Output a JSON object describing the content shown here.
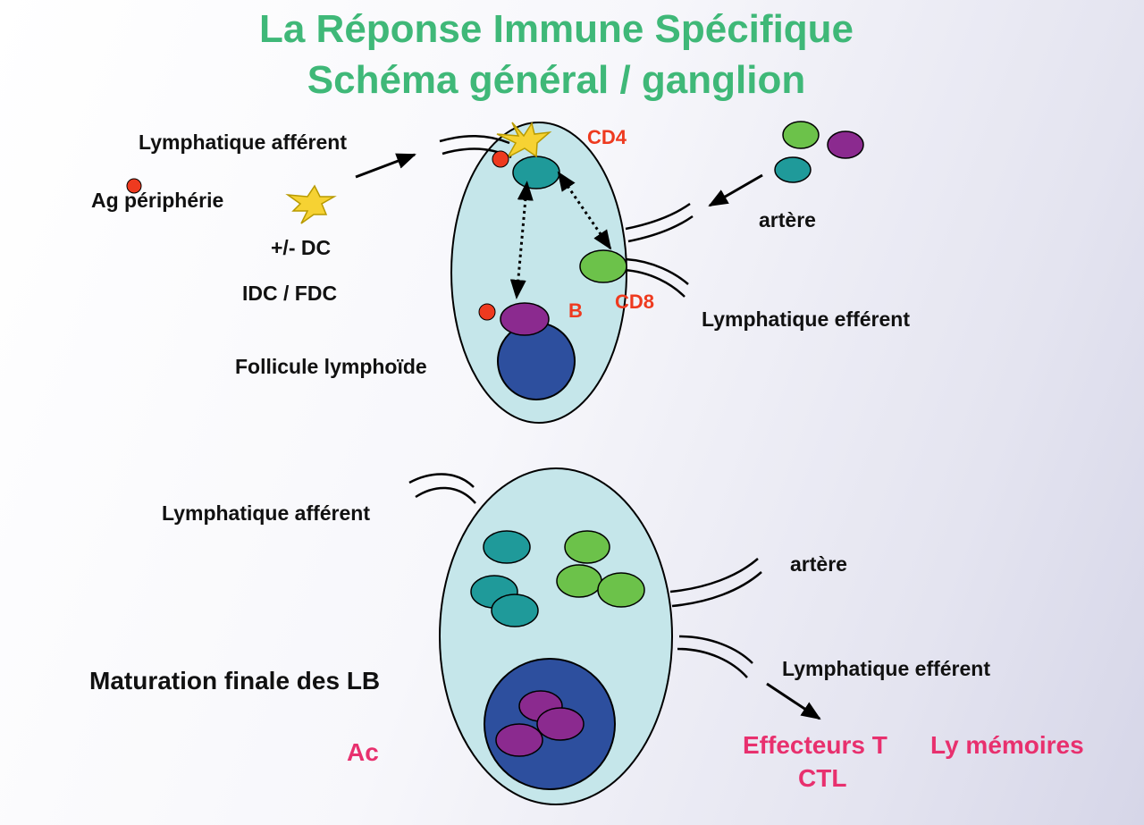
{
  "title": {
    "line1": "La Réponse Immune Spécifique",
    "line2": "Schéma général / ganglion"
  },
  "top": {
    "lymph_afferent": "Lymphatique afférent",
    "ag": "Ag périphérie",
    "dc": "+/-  DC",
    "idc_fdc": "IDC / FDC",
    "cd4": "CD4",
    "cd8": "CD8",
    "b": "B",
    "artere": "artère",
    "lymph_efferent": "Lymphatique efférent",
    "follicule": "Follicule lymphoïde"
  },
  "bottom": {
    "lymph_afferent": "Lymphatique afférent",
    "artere": "artère",
    "lymph_efferent": "Lymphatique efférent",
    "maturation": "Maturation finale des LB",
    "ac": "Ac",
    "effecteurs": "Effecteurs T",
    "ctl": "CTL",
    "memoires": "Ly mémoires"
  },
  "colors": {
    "title": "#3fb878",
    "node": "#c5e6ea",
    "cd4_cell": "#1f9a9a",
    "cd8_cell": "#6cc24a",
    "b_cell": "#8b2a8f",
    "follicle": "#2d4f9e",
    "antigen": "#ee3a1f",
    "dendritic_cell": "#f6d233",
    "label_red": "#ee3a1f",
    "label_pink": "#e8306e"
  }
}
